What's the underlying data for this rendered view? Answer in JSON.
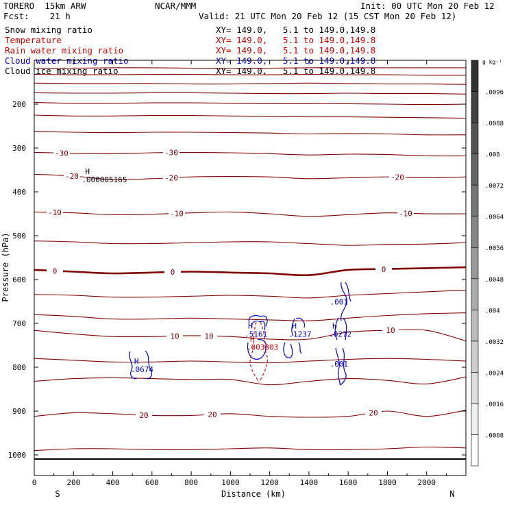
{
  "header": {
    "model": "TORERO  15km ARW",
    "center": "NCAR/MMM",
    "init": "Init: 00 UTC Mon 20 Feb 12",
    "fcst": "Fcst:    21 h",
    "valid": "Valid: 21 UTC Mon 20 Feb 12 (15 CST Mon 20 Feb 12)"
  },
  "fields": [
    {
      "name": "Snow mixing ratio",
      "xy": "XY= 149.0,   5.1 to 149.0,149.8",
      "color": "#000000"
    },
    {
      "name": "Temperature",
      "xy": "XY= 149.0,   5.1 to 149.0,149.8",
      "color": "#cc0000"
    },
    {
      "name": "Rain water mixing ratio",
      "xy": "XY= 149.0,   5.1 to 149.0,149.8",
      "color": "#cc0000"
    },
    {
      "name": "Cloud water mixing ratio",
      "xy": "XY= 149.0,   5.1 to 149.0,149.8",
      "color": "#0000cc"
    },
    {
      "name": "Cloud ice mixing ratio",
      "xy": "XY= 149.0,   5.1 to 149.0,149.8",
      "color": "#000000"
    }
  ],
  "chart_data": {
    "type": "contour",
    "xlabel": "Distance (km)",
    "ylabel": "Pressure (hPa)",
    "xlim": [
      0,
      2200
    ],
    "ylim": [
      1020,
      100
    ],
    "x_ticks": [
      0,
      200,
      400,
      600,
      800,
      1000,
      1200,
      1400,
      1600,
      1800,
      2000
    ],
    "y_ticks": [
      200,
      300,
      400,
      500,
      600,
      700,
      800,
      900,
      1000
    ],
    "x_end_labels": {
      "left": "S",
      "right": "N"
    },
    "temperature_color": "#800000",
    "temperature_contours": [
      {
        "label": "",
        "p": [
          118,
          118,
          117,
          117,
          118,
          118,
          118,
          117,
          117,
          117,
          117,
          117
        ]
      },
      {
        "label": "",
        "p": [
          132,
          133,
          133,
          132,
          132,
          133,
          133,
          132,
          133,
          133,
          134,
          134
        ]
      },
      {
        "label": "",
        "p": [
          152,
          153,
          153,
          153,
          154,
          154,
          153,
          152,
          153,
          154,
          154,
          155
        ]
      },
      {
        "label": "",
        "p": [
          174,
          175,
          175,
          174,
          174,
          175,
          176,
          176,
          175,
          176,
          176,
          177
        ]
      },
      {
        "label": "",
        "p": [
          196,
          198,
          198,
          197,
          197,
          198,
          199,
          199,
          199,
          200,
          201,
          200
        ]
      },
      {
        "label": "",
        "p": [
          225,
          227,
          227,
          226,
          226,
          227,
          228,
          229,
          229,
          230,
          231,
          232
        ]
      },
      {
        "label": "",
        "p": [
          262,
          264,
          265,
          264,
          264,
          265,
          266,
          268,
          267,
          268,
          270,
          270
        ]
      },
      {
        "label": "-30",
        "p": [
          310,
          312,
          313,
          311,
          310,
          311,
          313,
          316,
          314,
          315,
          318,
          318
        ]
      },
      {
        "label": "-20",
        "p": [
          360,
          364,
          372,
          370,
          366,
          365,
          366,
          370,
          368,
          366,
          368,
          366
        ]
      },
      {
        "label": "-10",
        "p": [
          446,
          448,
          452,
          451,
          448,
          446,
          450,
          456,
          452,
          448,
          450,
          450
        ]
      },
      {
        "label": "",
        "p": [
          512,
          514,
          518,
          518,
          516,
          514,
          514,
          518,
          522,
          520,
          519,
          516
        ]
      },
      {
        "label": "0",
        "p": [
          578,
          582,
          586,
          584,
          582,
          584,
          586,
          590,
          578,
          576,
          574,
          572
        ]
      },
      {
        "label": "",
        "p": [
          634,
          636,
          640,
          640,
          638,
          636,
          638,
          642,
          636,
          632,
          628,
          624
        ]
      },
      {
        "label": "",
        "p": [
          680,
          684,
          690,
          690,
          688,
          690,
          692,
          694,
          688,
          682,
          678,
          676
        ]
      },
      {
        "label": "10",
        "p": [
          716,
          724,
          730,
          730,
          728,
          730,
          736,
          736,
          720,
          716,
          716,
          740
        ]
      },
      {
        "label": "",
        "p": [
          780,
          784,
          788,
          788,
          786,
          788,
          790,
          786,
          782,
          780,
          782,
          786
        ]
      },
      {
        "label": "",
        "p": [
          832,
          826,
          824,
          826,
          828,
          828,
          840,
          832,
          826,
          830,
          838,
          822
        ]
      },
      {
        "label": "20",
        "p": [
          912,
          904,
          906,
          910,
          910,
          906,
          912,
          914,
          912,
          900,
          912,
          898
        ]
      },
      {
        "label": "",
        "p": [
          990,
          986,
          986,
          988,
          988,
          986,
          984,
          988,
          988,
          986,
          982,
          984
        ]
      }
    ],
    "cloud_water_maxima": [
      {
        "symbol": "H",
        "value": ".0674",
        "x": 520,
        "p": 808
      },
      {
        "symbol": "H",
        "value": ".5161",
        "x": 1100,
        "p": 727
      },
      {
        "symbol": "H",
        "value": ".1237",
        "x": 1325,
        "p": 727
      },
      {
        "symbol": "H",
        "value": ".0272",
        "x": 1530,
        "p": 727
      },
      {
        "symbol": "",
        "value": ".001",
        "x": 1535,
        "p": 654
      },
      {
        "symbol": "",
        "value": ".001",
        "x": 1535,
        "p": 795
      }
    ],
    "rain_maxima": [
      {
        "symbol": "H",
        "value": ".003303",
        "x": 1110,
        "p": 757
      }
    ],
    "ice_maxima": [
      {
        "symbol": "H",
        "value": ".000005165",
        "x": 270,
        "p": 375
      }
    ],
    "colorbar": {
      "unit": "g kg⁻¹",
      "levels": [
        ".0008",
        ".0016",
        ".0024",
        ".0032",
        ".004",
        ".0048",
        ".0056",
        ".0064",
        ".0072",
        ".008",
        ".0088",
        ".0096"
      ]
    }
  }
}
